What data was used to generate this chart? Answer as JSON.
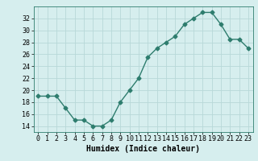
{
  "x": [
    0,
    1,
    2,
    3,
    4,
    5,
    6,
    7,
    8,
    9,
    10,
    11,
    12,
    13,
    14,
    15,
    16,
    17,
    18,
    19,
    20,
    21,
    22,
    23
  ],
  "y": [
    19.0,
    19.0,
    19.0,
    17.0,
    15.0,
    15.0,
    14.0,
    14.0,
    15.0,
    18.0,
    20.0,
    22.0,
    25.5,
    27.0,
    28.0,
    29.0,
    31.0,
    32.0,
    33.0,
    33.0,
    31.0,
    28.5,
    28.5,
    27.0
  ],
  "line_color": "#2e7d6e",
  "marker": "D",
  "marker_size": 2.5,
  "bg_color": "#d6eeee",
  "grid_color": "#b8d8d8",
  "xlabel": "Humidex (Indice chaleur)",
  "xlim": [
    -0.5,
    23.5
  ],
  "ylim": [
    13,
    34
  ],
  "yticks": [
    14,
    16,
    18,
    20,
    22,
    24,
    26,
    28,
    30,
    32
  ],
  "xticks": [
    0,
    1,
    2,
    3,
    4,
    5,
    6,
    7,
    8,
    9,
    10,
    11,
    12,
    13,
    14,
    15,
    16,
    17,
    18,
    19,
    20,
    21,
    22,
    23
  ],
  "label_fontsize": 7,
  "tick_fontsize": 6
}
